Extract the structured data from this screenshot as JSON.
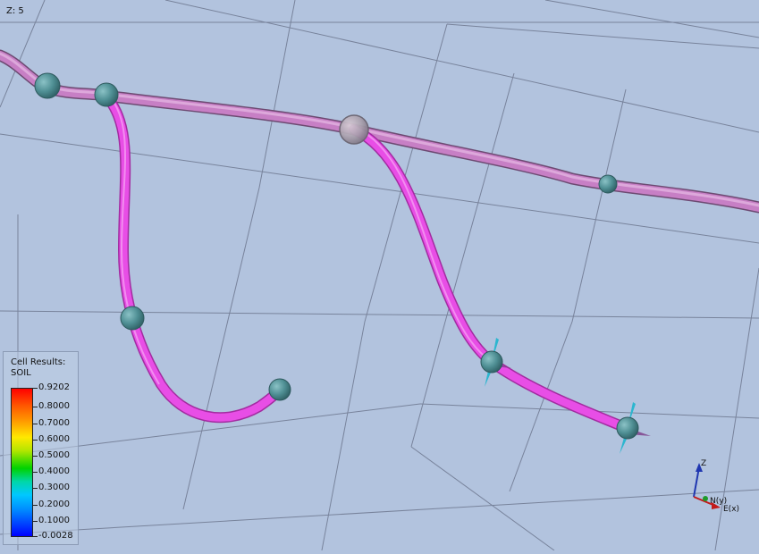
{
  "viewport": {
    "z_scale_label": "Z: 5"
  },
  "legend": {
    "title_line1": "Cell Results:",
    "title_line2": "SOIL",
    "values": [
      "0.9202",
      "0.8000",
      "0.7000",
      "0.6000",
      "0.5000",
      "0.4000",
      "0.3000",
      "0.2000",
      "0.1000",
      "-0.0028"
    ]
  },
  "axes": {
    "z": "Z",
    "n": "N(y)",
    "e": "E(x)"
  },
  "colors": {
    "background": "#b2c3de",
    "main_well": "#c77fc5",
    "lateral_well": "#e84ee6",
    "connection": "#4f8f94",
    "completion": "#2cb6cf"
  }
}
